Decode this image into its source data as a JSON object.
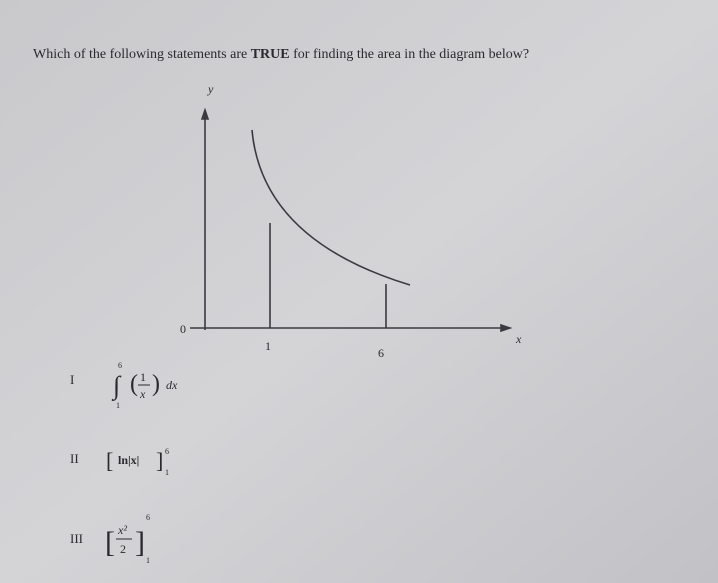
{
  "question": {
    "before": "Which of the following statements are ",
    "emphasis": "TRUE",
    "after": " for finding the area in the diagram below?"
  },
  "diagram": {
    "y_label": "y",
    "x_label": "x",
    "origin": "0",
    "marks": [
      "1",
      "6"
    ]
  },
  "options": [
    {
      "numeral": "I",
      "lower": "1",
      "upper": "6",
      "numerator": "1",
      "denominator": "x",
      "differential": "dx"
    },
    {
      "numeral": "II",
      "body": "ln|x|",
      "lower": "1",
      "upper": "6"
    },
    {
      "numeral": "III",
      "numerator": "x²",
      "denominator": "2",
      "lower": "1",
      "upper": "6"
    }
  ]
}
